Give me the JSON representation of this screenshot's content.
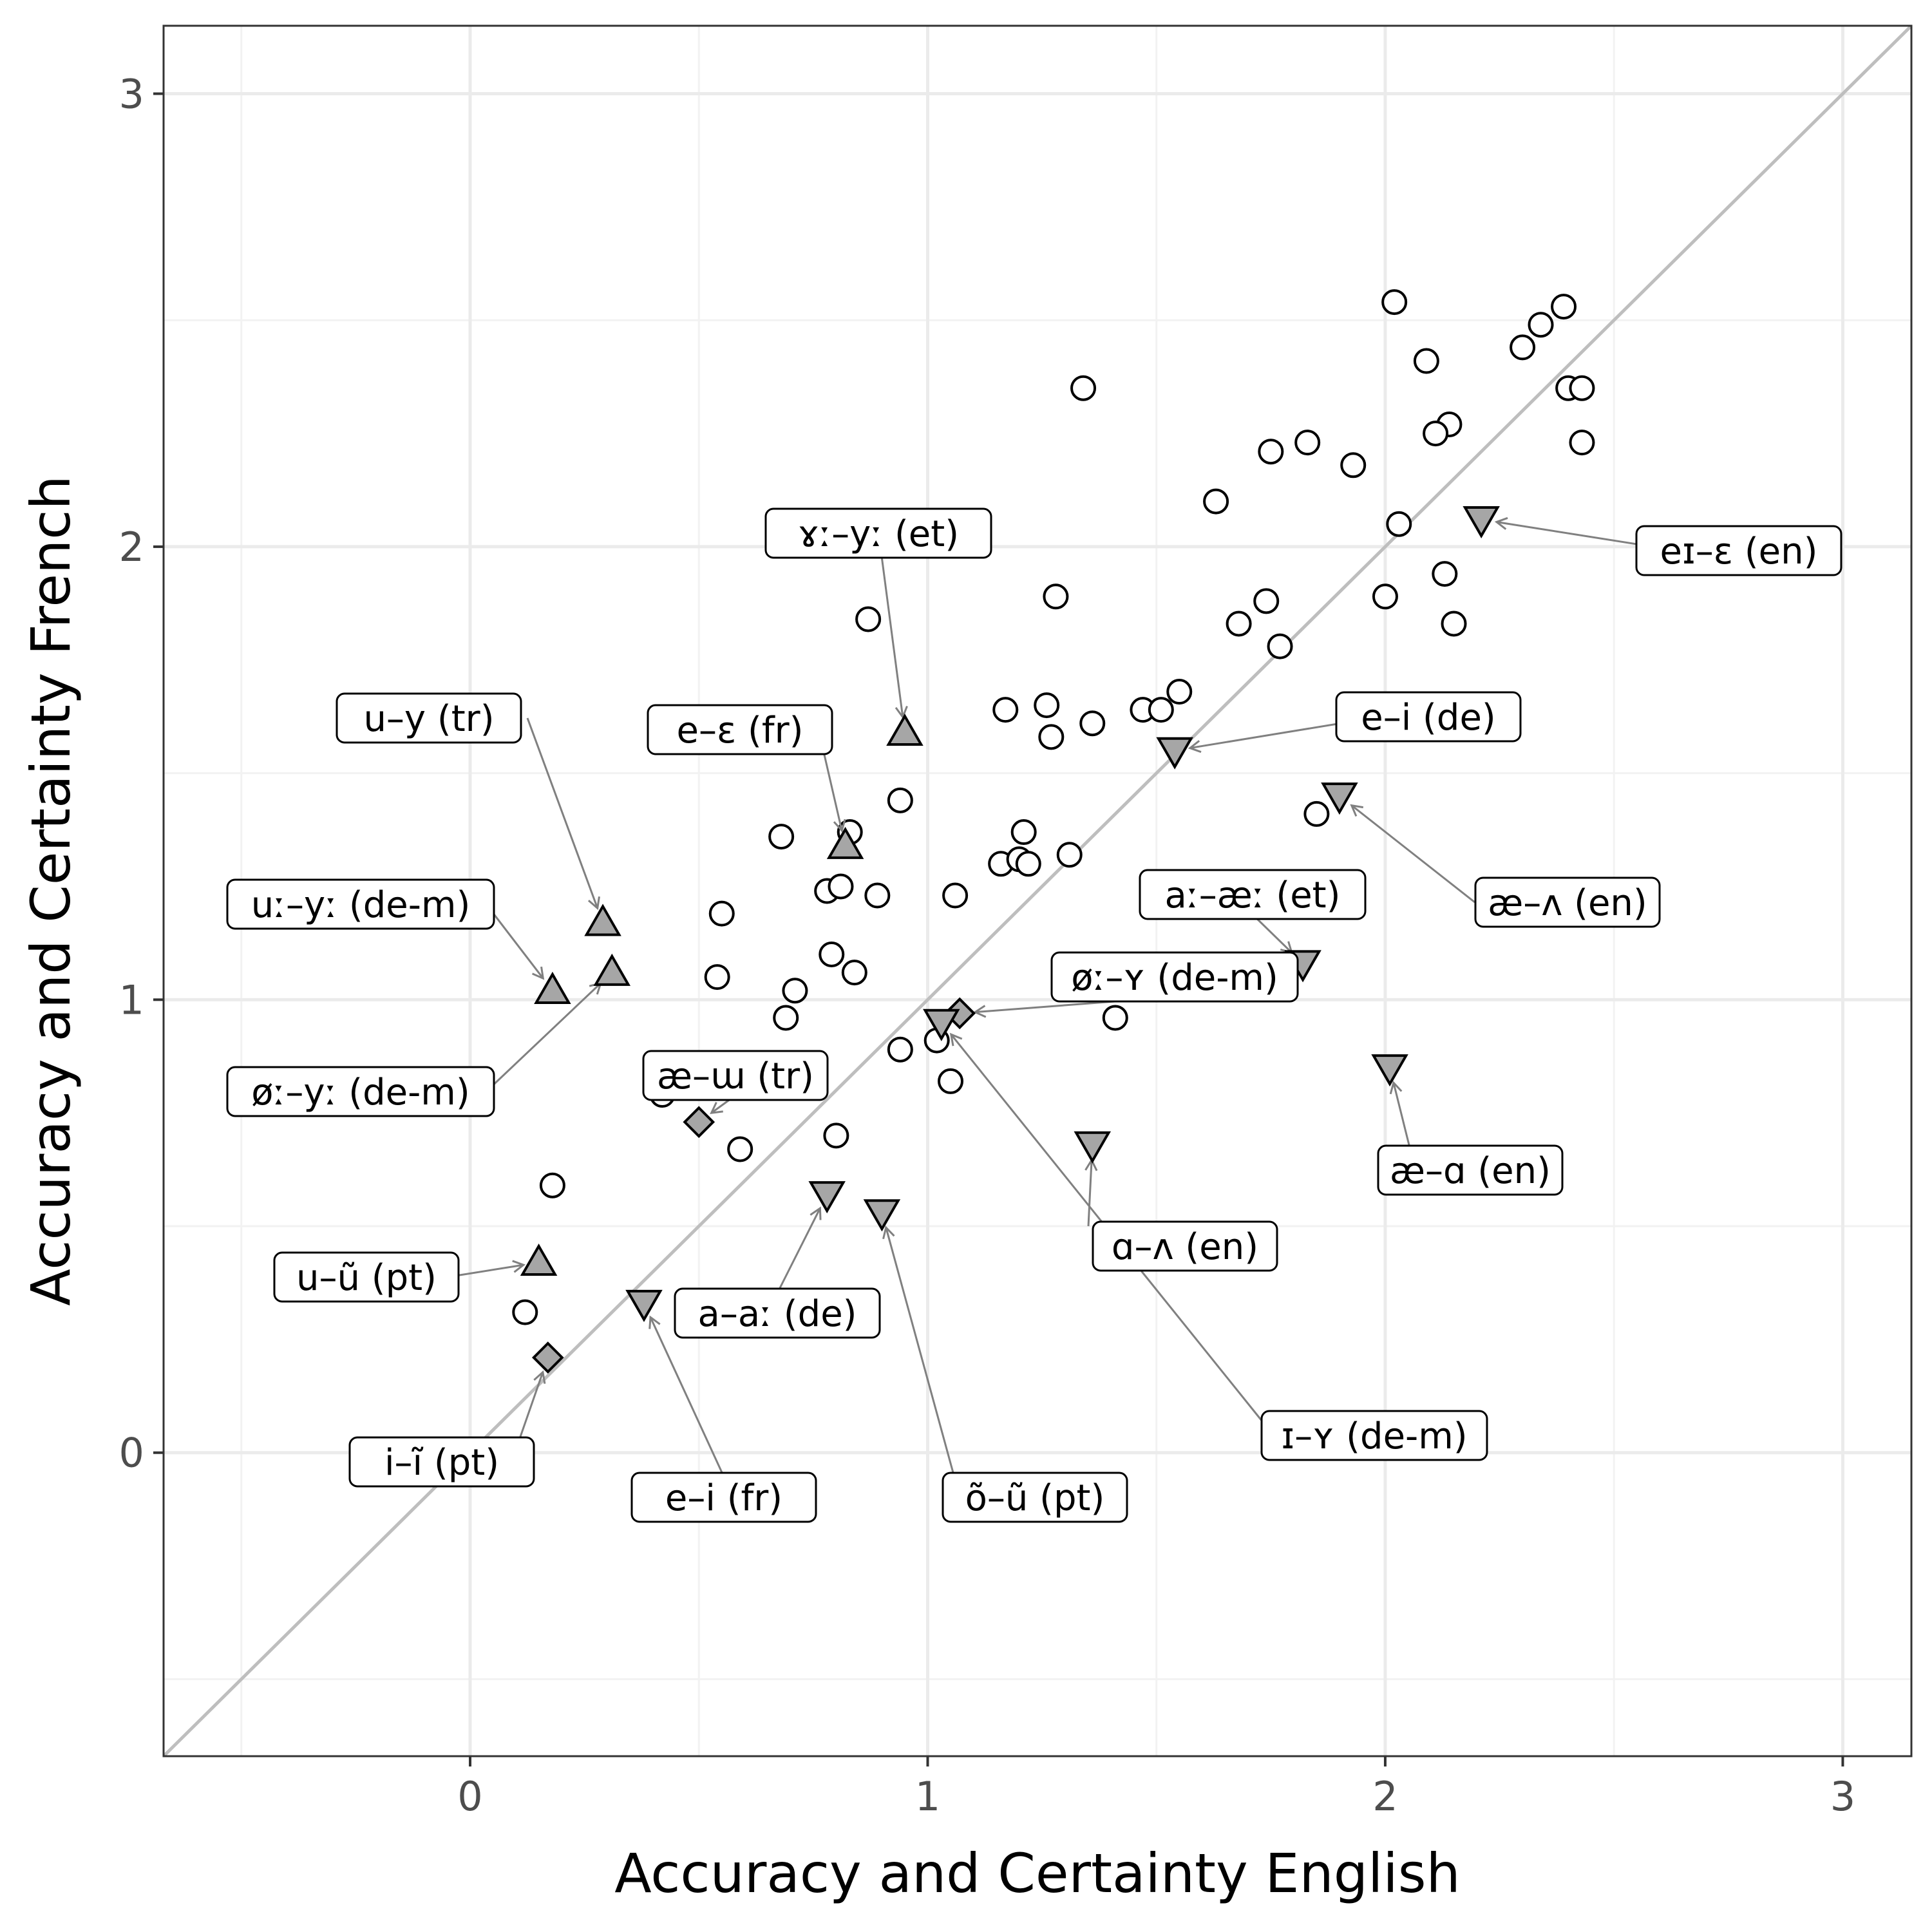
{
  "chart_data": {
    "type": "scatter",
    "title": "",
    "xlabel": "Accuracy and Certainty English",
    "ylabel": "Accuracy and Certainty French",
    "xlim": [
      -0.67,
      3.15
    ],
    "ylim": [
      -0.67,
      3.15
    ],
    "x_ticks": [
      0,
      1,
      2,
      3
    ],
    "y_ticks": [
      0,
      1,
      2,
      3
    ],
    "x_tick_labels": [
      "0",
      "1",
      "2",
      "3"
    ],
    "y_tick_labels": [
      "0",
      "1",
      "2",
      "3"
    ],
    "grid": true,
    "reference_line": "y = x",
    "colors": {
      "background": "#ffffff",
      "grid_major": "#ebebeb",
      "grid_minor": "#f2f2f2",
      "panel_border": "#333333",
      "identity_line": "#bebebe",
      "marker_fill_highlight": "#a6a6a6",
      "marker_stroke": "#000000",
      "leader_line": "#808080"
    },
    "points": [
      {
        "x": 2.02,
        "y": 2.54
      },
      {
        "x": 2.09,
        "y": 2.41
      },
      {
        "x": 2.39,
        "y": 2.53
      },
      {
        "x": 2.34,
        "y": 2.49
      },
      {
        "x": 2.3,
        "y": 2.44
      },
      {
        "x": 2.4,
        "y": 2.35
      },
      {
        "x": 2.43,
        "y": 2.35
      },
      {
        "x": 2.43,
        "y": 2.23
      },
      {
        "x": 2.14,
        "y": 2.27
      },
      {
        "x": 2.11,
        "y": 2.25
      },
      {
        "x": 1.83,
        "y": 2.23
      },
      {
        "x": 1.75,
        "y": 2.21
      },
      {
        "x": 1.93,
        "y": 2.18
      },
      {
        "x": 1.63,
        "y": 2.1
      },
      {
        "x": 2.03,
        "y": 2.05
      },
      {
        "x": 2.13,
        "y": 1.94
      },
      {
        "x": 2.0,
        "y": 1.89
      },
      {
        "x": 1.74,
        "y": 1.88
      },
      {
        "x": 1.68,
        "y": 1.83
      },
      {
        "x": 1.77,
        "y": 1.78
      },
      {
        "x": 2.15,
        "y": 1.83
      },
      {
        "x": 1.34,
        "y": 2.35
      },
      {
        "x": 1.28,
        "y": 1.89
      },
      {
        "x": 0.87,
        "y": 1.84
      },
      {
        "x": 1.55,
        "y": 1.68
      },
      {
        "x": 1.47,
        "y": 1.64
      },
      {
        "x": 1.51,
        "y": 1.64
      },
      {
        "x": 1.17,
        "y": 1.64
      },
      {
        "x": 1.26,
        "y": 1.65
      },
      {
        "x": 1.36,
        "y": 1.61
      },
      {
        "x": 1.27,
        "y": 1.58
      },
      {
        "x": 1.85,
        "y": 1.41
      },
      {
        "x": 0.94,
        "y": 1.44
      },
      {
        "x": 0.68,
        "y": 1.36
      },
      {
        "x": 0.83,
        "y": 1.37
      },
      {
        "x": 1.21,
        "y": 1.37
      },
      {
        "x": 1.31,
        "y": 1.32
      },
      {
        "x": 1.16,
        "y": 1.3
      },
      {
        "x": 1.2,
        "y": 1.31
      },
      {
        "x": 1.22,
        "y": 1.3
      },
      {
        "x": 0.78,
        "y": 1.24
      },
      {
        "x": 0.81,
        "y": 1.25
      },
      {
        "x": 0.89,
        "y": 1.23
      },
      {
        "x": 1.06,
        "y": 1.23
      },
      {
        "x": 0.55,
        "y": 1.19
      },
      {
        "x": 0.79,
        "y": 1.1
      },
      {
        "x": 0.54,
        "y": 1.05
      },
      {
        "x": 0.84,
        "y": 1.06
      },
      {
        "x": 0.71,
        "y": 1.02
      },
      {
        "x": 0.69,
        "y": 0.96
      },
      {
        "x": 1.41,
        "y": 0.96
      },
      {
        "x": 0.94,
        "y": 0.89
      },
      {
        "x": 1.02,
        "y": 0.91
      },
      {
        "x": 1.05,
        "y": 0.82
      },
      {
        "x": 0.42,
        "y": 0.79
      },
      {
        "x": 0.44,
        "y": 0.82
      },
      {
        "x": 0.8,
        "y": 0.7
      },
      {
        "x": 0.59,
        "y": 0.67
      },
      {
        "x": 0.18,
        "y": 0.59
      },
      {
        "x": 0.12,
        "y": 0.31
      }
    ],
    "highlighted": [
      {
        "label": "eɪ–ɛ (en)",
        "marker": "triangle-down",
        "x": 2.21,
        "y": 2.06
      },
      {
        "label": "ɤː–yː (et)",
        "marker": "triangle-up",
        "x": 0.95,
        "y": 1.59
      },
      {
        "label": "e–i (de)",
        "marker": "triangle-down",
        "x": 1.54,
        "y": 1.55
      },
      {
        "label": "e–ɛ (fr)",
        "marker": "triangle-up",
        "x": 0.82,
        "y": 1.34
      },
      {
        "label": "u–y (tr)",
        "marker": "triangle-up",
        "x": 0.29,
        "y": 1.17
      },
      {
        "label": "æ–ʌ (en)",
        "marker": "triangle-down",
        "x": 1.9,
        "y": 1.45
      },
      {
        "label": "uː–yː (de-m)",
        "marker": "triangle-up",
        "x": 0.18,
        "y": 1.02
      },
      {
        "label": "aː–æː (et)",
        "marker": "triangle-down",
        "x": 1.82,
        "y": 1.08
      },
      {
        "label": "øː–ʏ (de-m)",
        "marker": "diamond",
        "x": 1.07,
        "y": 0.97
      },
      {
        "label": "øː–yː (de-m)",
        "marker": "triangle-up",
        "x": 0.31,
        "y": 1.06
      },
      {
        "label": "æ–ɯ (tr)",
        "marker": "diamond",
        "x": 0.5,
        "y": 0.73
      },
      {
        "label": "æ–ɑ (en)",
        "marker": "triangle-down",
        "x": 2.01,
        "y": 0.85
      },
      {
        "label": "ɑ–ʌ (en)",
        "marker": "triangle-down",
        "x": 1.36,
        "y": 0.68
      },
      {
        "label": "u–ũ (pt)",
        "marker": "triangle-up",
        "x": 0.15,
        "y": 0.42
      },
      {
        "label": "a–aː (de)",
        "marker": "triangle-down",
        "x": 0.78,
        "y": 0.57
      },
      {
        "label": "ɪ–ʏ (de-m)",
        "marker": "triangle-down",
        "x": 1.03,
        "y": 0.95
      },
      {
        "label": "i–ĩ (pt)",
        "marker": "diamond",
        "x": 0.17,
        "y": 0.21
      },
      {
        "label": "e–i (fr)",
        "marker": "triangle-down",
        "x": 0.38,
        "y": 0.33
      },
      {
        "label": "õ–ũ (pt)",
        "marker": "triangle-down",
        "x": 0.9,
        "y": 0.53
      }
    ]
  }
}
